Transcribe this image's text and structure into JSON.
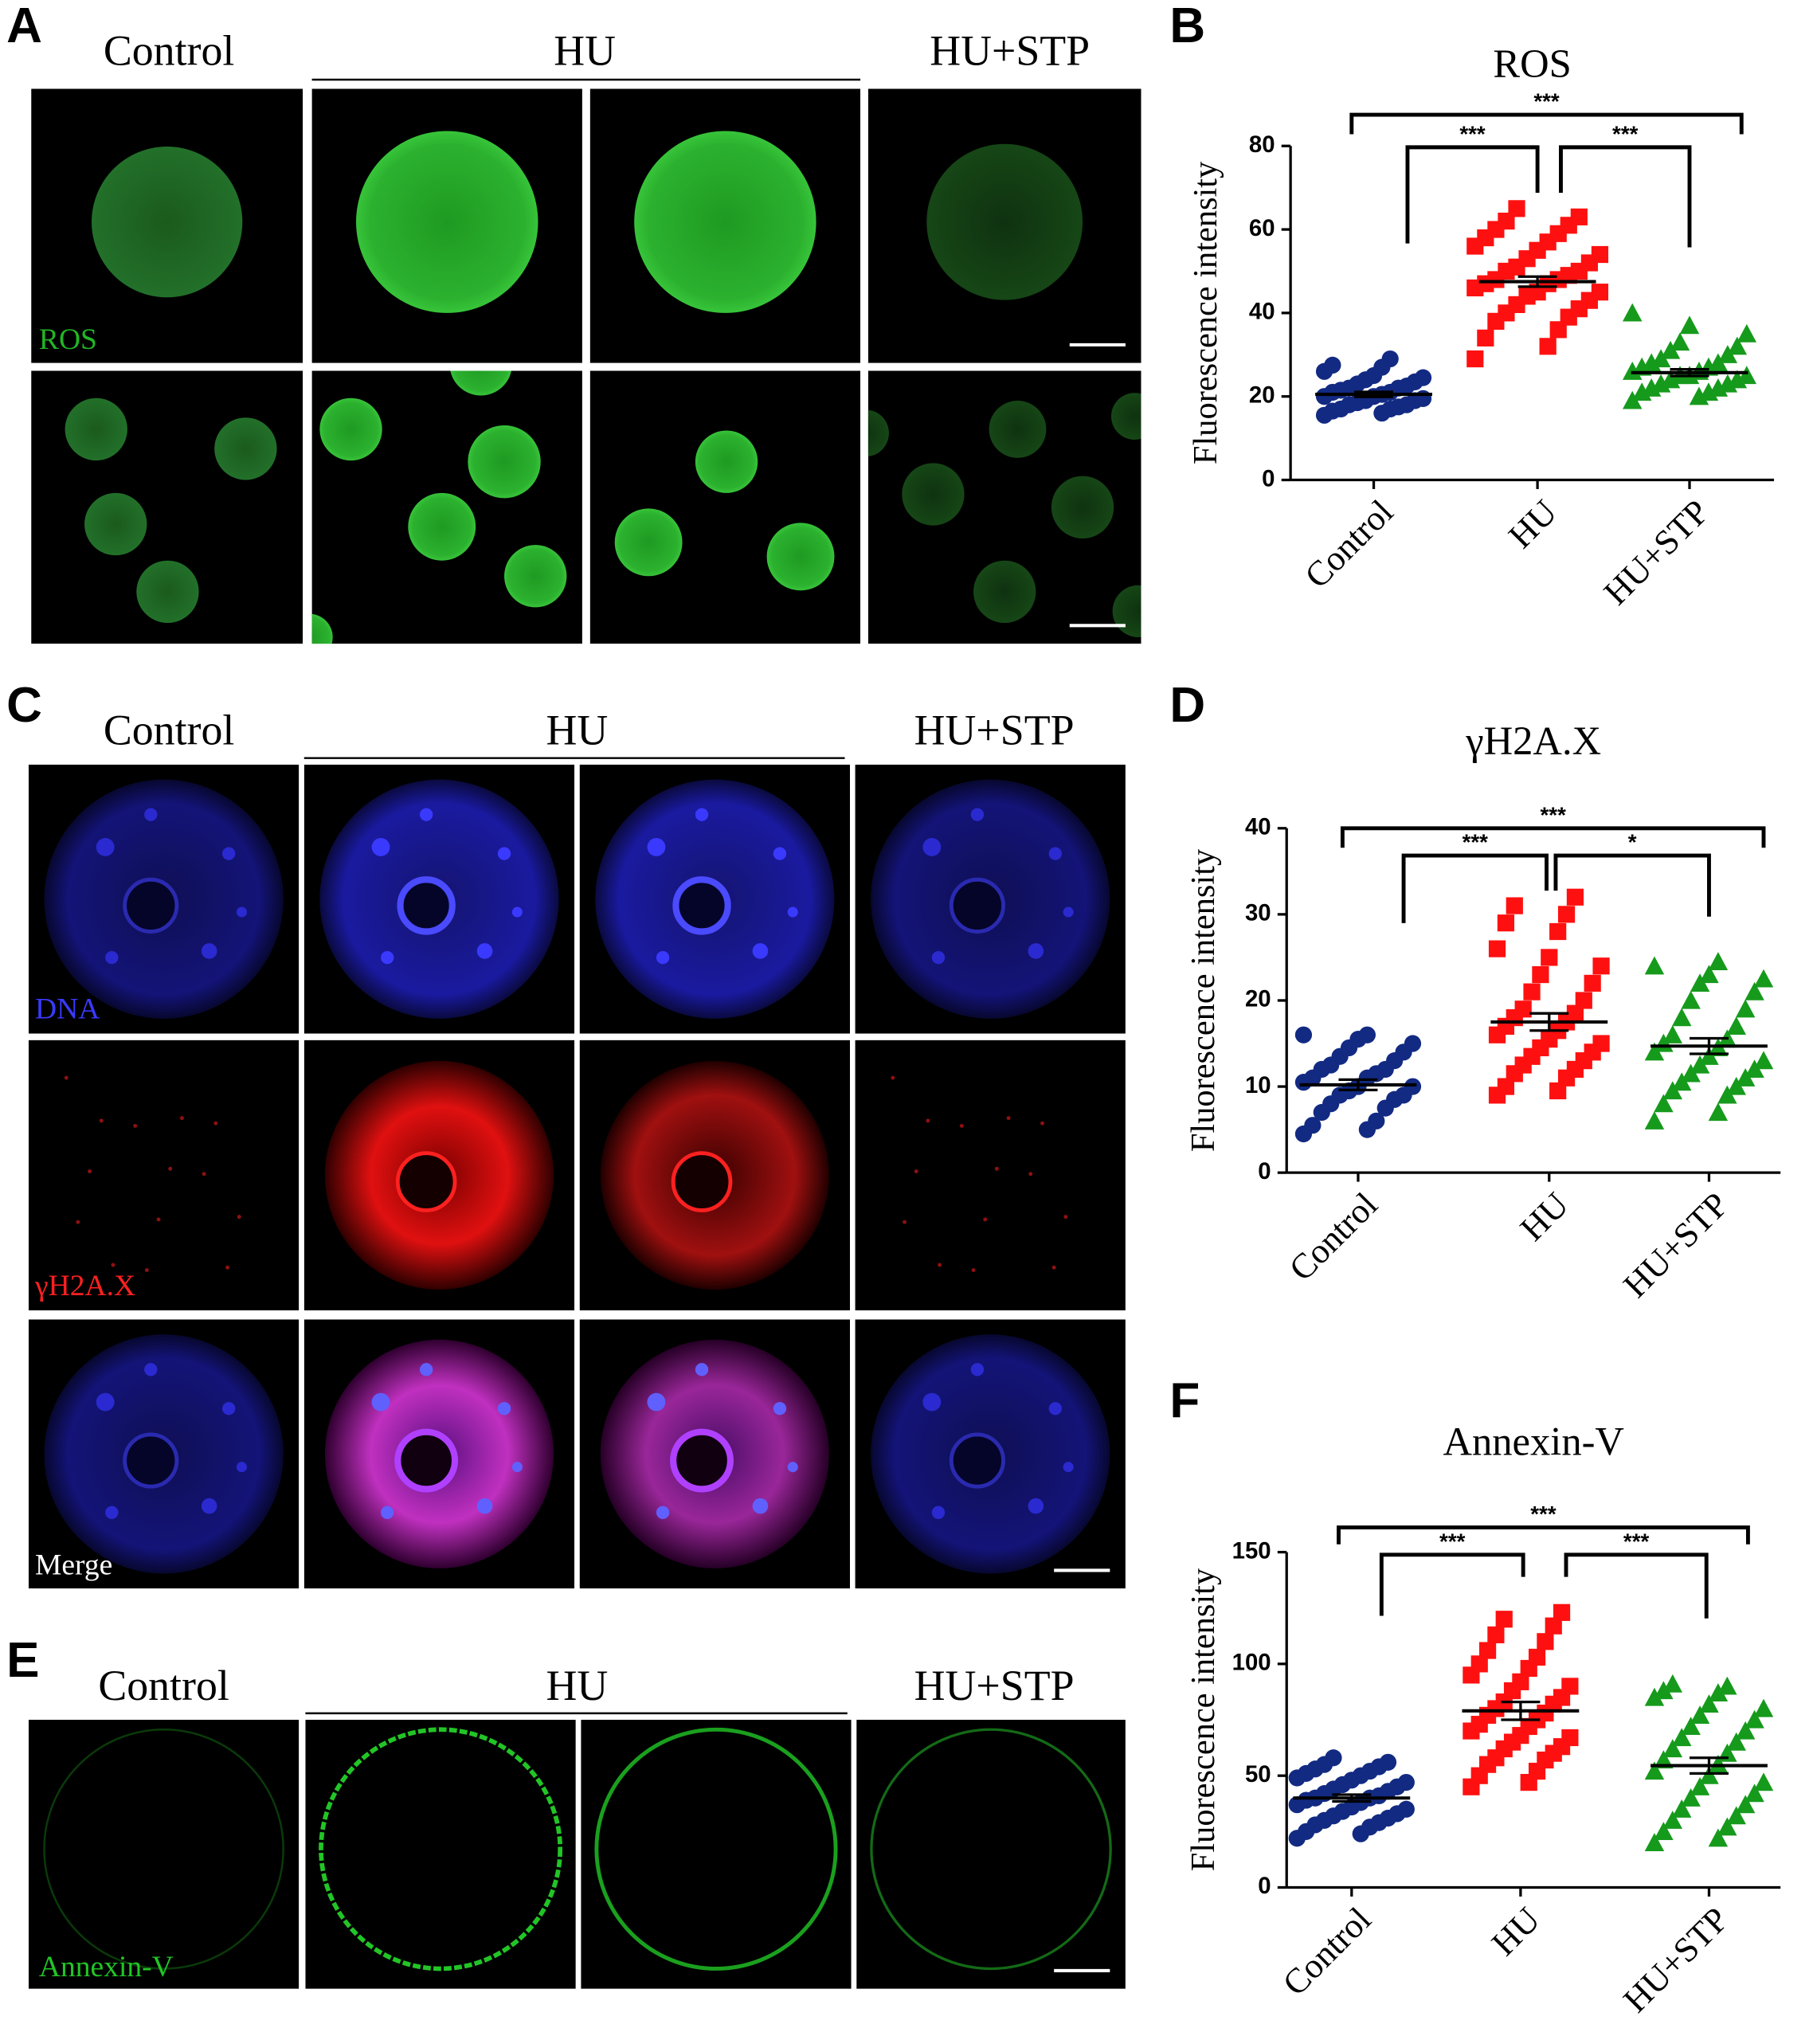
{
  "panel_letters": [
    "A",
    "B",
    "C",
    "D",
    "E",
    "F"
  ],
  "image_panels": [
    {
      "columns": [
        "Control",
        "HU",
        "HU+STP"
      ],
      "labels": [
        "ROS"
      ]
    },
    {
      "columns": [
        "Control",
        "HU",
        "HU+STP"
      ],
      "labels": [
        "DNA",
        "γH2A.X",
        "Merge"
      ]
    },
    {
      "columns": [
        "Control",
        "HU",
        "HU+STP"
      ],
      "labels": [
        "Annexin-V"
      ]
    }
  ],
  "chart_data": [
    {
      "type": "dot",
      "title": "ROS",
      "y_label": "Fluorescence intensity",
      "categories": [
        "Control",
        "HU",
        "HU+STP"
      ],
      "ylim": [
        0,
        80
      ],
      "yticks": [
        0,
        20,
        40,
        60,
        80
      ],
      "groups": [
        {
          "color": "#122a82",
          "marker": "circle",
          "mean": 20.5,
          "sem": 0.6,
          "values": [
            15.5,
            16,
            16.5,
            17,
            17,
            17.5,
            18,
            18,
            18.5,
            19,
            19,
            19.5,
            20,
            20,
            20.5,
            21,
            21,
            21.5,
            22,
            22,
            22.5,
            23,
            23.5,
            24,
            24.5,
            25,
            26,
            27,
            27.5,
            29
          ]
        },
        {
          "color": "#ff1010",
          "marker": "square",
          "mean": 47.5,
          "sem": 1.2,
          "values": [
            29,
            32,
            34,
            36,
            38,
            39,
            40,
            41,
            42,
            43,
            44,
            45,
            45,
            46,
            47,
            47,
            48,
            48,
            49,
            50,
            50,
            51,
            52,
            53,
            54,
            55,
            56,
            57,
            58,
            59,
            60,
            61,
            62,
            63,
            65
          ]
        },
        {
          "color": "#169a1c",
          "marker": "triangle",
          "mean": 25.7,
          "sem": 0.8,
          "values": [
            19,
            20,
            21,
            21,
            22,
            22,
            23,
            23,
            24,
            24,
            25,
            25,
            25,
            26,
            26,
            27,
            27,
            28,
            28,
            29,
            30,
            31,
            32,
            33,
            35,
            37,
            40
          ]
        }
      ],
      "significance": [
        "***",
        "***",
        "***"
      ]
    },
    {
      "type": "dot",
      "title": "γH2A.X",
      "y_label": "Fluorescence intensity",
      "categories": [
        "Control",
        "HU",
        "HU+STP"
      ],
      "ylim": [
        0,
        40
      ],
      "yticks": [
        0,
        10,
        20,
        30,
        40
      ],
      "groups": [
        {
          "color": "#122a82",
          "marker": "circle",
          "mean": 10.2,
          "sem": 0.6,
          "values": [
            4.5,
            5,
            5.5,
            6,
            7,
            7.5,
            8,
            8.5,
            9,
            9,
            9.5,
            10,
            10,
            10.5,
            11,
            11,
            11.5,
            12,
            12,
            12.5,
            13,
            13.5,
            14,
            14.5,
            15,
            15.5,
            16,
            16
          ]
        },
        {
          "color": "#ff1010",
          "marker": "square",
          "mean": 17.5,
          "sem": 1.0,
          "values": [
            9,
            9.5,
            10,
            11,
            11.5,
            12,
            12.5,
            13,
            13.5,
            14,
            14.5,
            15,
            15.5,
            16,
            16.5,
            17,
            17.5,
            18,
            18.5,
            19,
            20,
            21,
            22,
            23,
            24,
            25,
            26,
            28,
            29,
            30,
            31,
            32
          ]
        },
        {
          "color": "#169a1c",
          "marker": "triangle",
          "mean": 14.7,
          "sem": 0.9,
          "values": [
            6,
            7,
            8,
            9,
            9.5,
            10,
            10.5,
            11,
            11.5,
            12,
            12.5,
            13,
            13.5,
            14,
            14.5,
            15,
            15.5,
            16,
            17,
            18,
            19,
            20,
            21,
            22,
            22.5,
            23,
            24,
            24.5
          ]
        }
      ],
      "significance": [
        "***",
        "***",
        "*"
      ]
    },
    {
      "type": "dot",
      "title": "Annexin-V",
      "y_label": "Fluorescence intensity",
      "categories": [
        "Control",
        "HU",
        "HU+STP"
      ],
      "ylim": [
        0,
        150
      ],
      "yticks": [
        0,
        50,
        100,
        150
      ],
      "groups": [
        {
          "color": "#122a82",
          "marker": "circle",
          "mean": 40,
          "sem": 1.5,
          "values": [
            22,
            24,
            25,
            27,
            28,
            29,
            30,
            31,
            32,
            33,
            34,
            35,
            36,
            37,
            38,
            39,
            40,
            40,
            41,
            42,
            43,
            44,
            45,
            46,
            47,
            48,
            49,
            50,
            51,
            52,
            53,
            54,
            55,
            56,
            58
          ]
        },
        {
          "color": "#ff1010",
          "marker": "square",
          "mean": 79,
          "sem": 4,
          "values": [
            45,
            47,
            50,
            52,
            55,
            57,
            58,
            60,
            62,
            63,
            65,
            67,
            68,
            70,
            72,
            73,
            75,
            77,
            78,
            80,
            82,
            83,
            85,
            88,
            90,
            92,
            95,
            98,
            100,
            103,
            106,
            110,
            113,
            117,
            120,
            123
          ]
        },
        {
          "color": "#169a1c",
          "marker": "triangle",
          "mean": 54.5,
          "sem": 3.5,
          "values": [
            20,
            22,
            25,
            27,
            30,
            32,
            35,
            37,
            40,
            42,
            45,
            47,
            50,
            52,
            55,
            57,
            60,
            62,
            65,
            67,
            70,
            72,
            75,
            77,
            80,
            82,
            85,
            87,
            88,
            90,
            91
          ]
        }
      ],
      "significance": [
        "***",
        "***",
        "***"
      ]
    }
  ]
}
